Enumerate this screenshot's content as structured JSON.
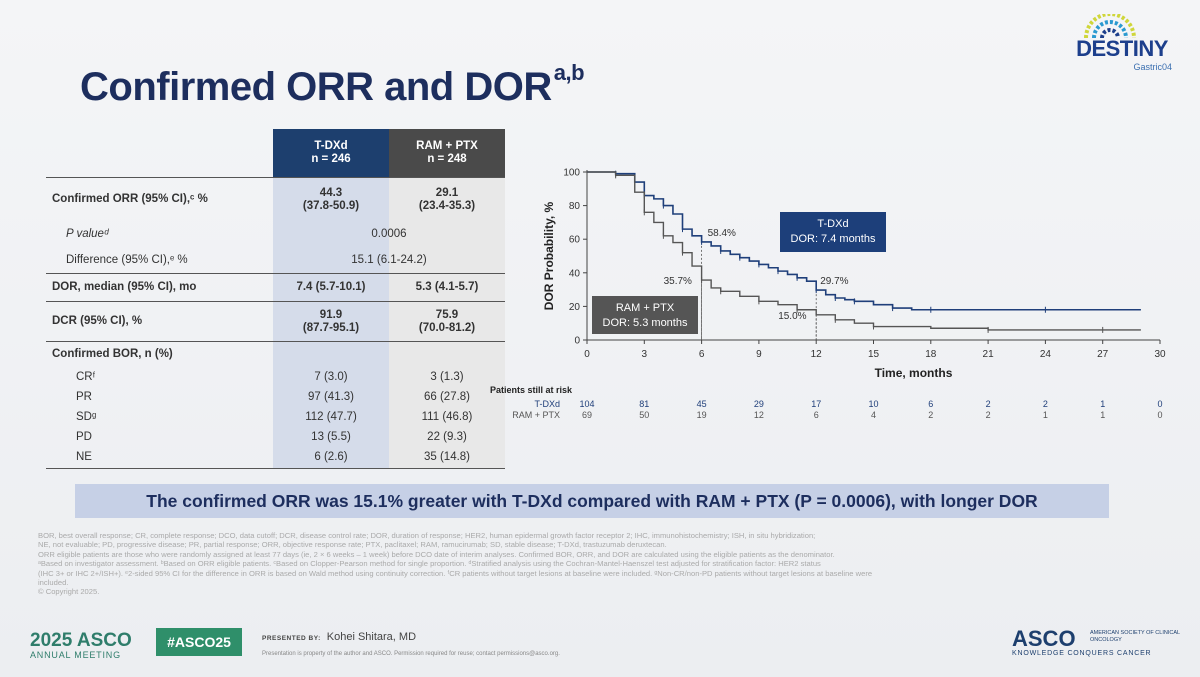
{
  "slide": {
    "title": "Confirmed ORR and DOR",
    "title_sup": "a,b",
    "logo_word": "DESTINY",
    "logo_sub": "Gastric04"
  },
  "table": {
    "arm1_header": "T-DXd",
    "arm1_n": "n = 246",
    "arm2_header": "RAM + PTX",
    "arm2_n": "n = 248",
    "rows": [
      {
        "label": "Confirmed ORR (95% CI),ᶜ %",
        "v1": "44.3",
        "v1b": "(37.8-50.9)",
        "v2": "29.1",
        "v2b": "(23.4-35.3)"
      },
      {
        "label": "P valueᵈ",
        "span": "0.0006"
      },
      {
        "label": "Difference (95% CI),ᵉ %",
        "span": "15.1 (6.1-24.2)"
      },
      {
        "label": "DOR, median (95% CI), mo",
        "v1": "7.4 (5.7-10.1)",
        "v2": "5.3 (4.1-5.7)"
      },
      {
        "label": "DCR (95% CI), %",
        "v1": "91.9",
        "v1b": "(87.7-95.1)",
        "v2": "75.9",
        "v2b": "(70.0-81.2)"
      },
      {
        "label": "Confirmed BOR, n (%)"
      },
      {
        "label": "CRᶠ",
        "v1": "7 (3.0)",
        "v2": "3 (1.3)"
      },
      {
        "label": "PR",
        "v1": "97 (41.3)",
        "v2": "66 (27.8)"
      },
      {
        "label": "SDᵍ",
        "v1": "112 (47.7)",
        "v2": "111 (46.8)"
      },
      {
        "label": "PD",
        "v1": "13 (5.5)",
        "v2": "22 (9.3)"
      },
      {
        "label": "NE",
        "v1": "6 (2.6)",
        "v2": "35 (14.8)"
      }
    ]
  },
  "chart_data": {
    "type": "line",
    "subtype": "kaplan-meier",
    "xlabel": "Time, months",
    "ylabel": "DOR Probability, %",
    "xlim": [
      0,
      30
    ],
    "ylim": [
      0,
      100
    ],
    "xticks": [
      0,
      3,
      6,
      9,
      12,
      15,
      18,
      21,
      24,
      27,
      30
    ],
    "yticks": [
      0,
      20,
      40,
      60,
      80,
      100
    ],
    "colors": {
      "tdxd": "#1f3f7a",
      "ramptx": "#555555"
    },
    "series": [
      {
        "name": "T-DXd",
        "color": "#1f3f7a",
        "x": [
          0,
          1.5,
          2.5,
          3.0,
          3.5,
          4.0,
          4.5,
          5.0,
          5.5,
          6.0,
          6.5,
          7.0,
          7.5,
          8.0,
          8.5,
          9.0,
          9.5,
          10.0,
          10.5,
          11.0,
          11.5,
          12.0,
          12.5,
          13.0,
          13.5,
          14.0,
          15.0,
          16.0,
          17.0,
          18.0,
          21.0,
          24.0,
          27.0,
          29.0
        ],
        "y": [
          100,
          99,
          94,
          86,
          84,
          80,
          75,
          66,
          62,
          58.4,
          56,
          53,
          51,
          49,
          47,
          45,
          43,
          41,
          39,
          37,
          35,
          29.7,
          27,
          25,
          24,
          23,
          21,
          19,
          18,
          18,
          18,
          18,
          18,
          18
        ]
      },
      {
        "name": "RAM + PTX",
        "color": "#555555",
        "x": [
          0,
          1.5,
          2.5,
          3.0,
          3.5,
          4.0,
          4.5,
          5.0,
          5.5,
          6.0,
          6.5,
          7.0,
          8.0,
          9.0,
          10.0,
          11.0,
          12.0,
          13.0,
          14.0,
          15.0,
          18.0,
          21.0,
          24.0,
          27.0,
          29.0
        ],
        "y": [
          100,
          98,
          88,
          76,
          70,
          62,
          58,
          52,
          44,
          35.7,
          31,
          29,
          26,
          23,
          21,
          18,
          15.0,
          12,
          10,
          8,
          7,
          6,
          6,
          6,
          6
        ]
      }
    ],
    "annotations": [
      {
        "text": "58.4%",
        "x": 6,
        "y": 58.4
      },
      {
        "text": "35.7%",
        "x": 6,
        "y": 35.7
      },
      {
        "text": "29.7%",
        "x": 12,
        "y": 29.7
      },
      {
        "text": "15.0%",
        "x": 12,
        "y": 15.0
      }
    ],
    "legend_boxes": [
      {
        "line1": "T-DXd",
        "line2": "DOR: 7.4 months",
        "color": "#1d3f7a"
      },
      {
        "line1": "RAM + PTX",
        "line2": "DOR: 5.3 months",
        "color": "#555555"
      }
    ],
    "risk_table": {
      "title": "Patients still at risk",
      "rows": [
        {
          "name": "T-DXd",
          "values": [
            104,
            81,
            45,
            29,
            17,
            10,
            6,
            2,
            2,
            1,
            0
          ]
        },
        {
          "name": "RAM + PTX",
          "values": [
            69,
            50,
            19,
            12,
            6,
            4,
            2,
            2,
            1,
            1,
            0
          ]
        }
      ]
    }
  },
  "banner": "The confirmed ORR was 15.1% greater with T-DXd compared with RAM + PTX (P = 0.0006), with longer DOR",
  "footnotes": [
    "BOR, best overall response; CR, complete response; DCO, data cutoff; DCR, disease control rate; DOR, duration of response; HER2, human epidermal growth factor receptor 2; IHC, immunohistochemistry; ISH, in situ hybridization;",
    "NE, not evaluable; PD, progressive disease; PR, partial response; ORR, objective response rate; PTX, paclitaxel; RAM, ramucirumab; SD, stable disease; T-DXd, trastuzumab deruxtecan.",
    "ORR eligible patients are those who were randomly assigned at least 77 days (ie, 2 × 6 weeks – 1 week) before DCO date of interim analyses. Confirmed BOR, ORR, and DOR are calculated using the eligible patients as the denominator.",
    "ᵃBased on investigator assessment. ᵇBased on ORR eligible patients. ᶜBased on Clopper-Pearson method for single proportion. ᵈStratified analysis using the Cochran-Mantel-Haenszel test adjusted for stratification factor: HER2 status",
    "(IHC 3+ or IHC 2+/ISH+). ᵉ2-sided 95% CI for the difference in ORR is based on Wald method using continuity correction. ᶠCR patients without target lesions at baseline were included. ᵍNon-CR/non-PD patients without target lesions at baseline were",
    "included.",
    "© Copyright 2025."
  ],
  "bottom": {
    "meeting_year": "2025 ASCO",
    "meeting_name": "ANNUAL MEETING",
    "hashtag": "#ASCO25",
    "presented_by_label": "PRESENTED BY:",
    "presenter": "Kohei Shitara, MD",
    "presenter_note": "Presentation is property of the author and ASCO. Permission required for reuse; contact permissions@asco.org.",
    "asco": "ASCO",
    "society": "AMERICAN SOCIETY OF CLINICAL ONCOLOGY",
    "tagline": "KNOWLEDGE CONQUERS CANCER"
  }
}
